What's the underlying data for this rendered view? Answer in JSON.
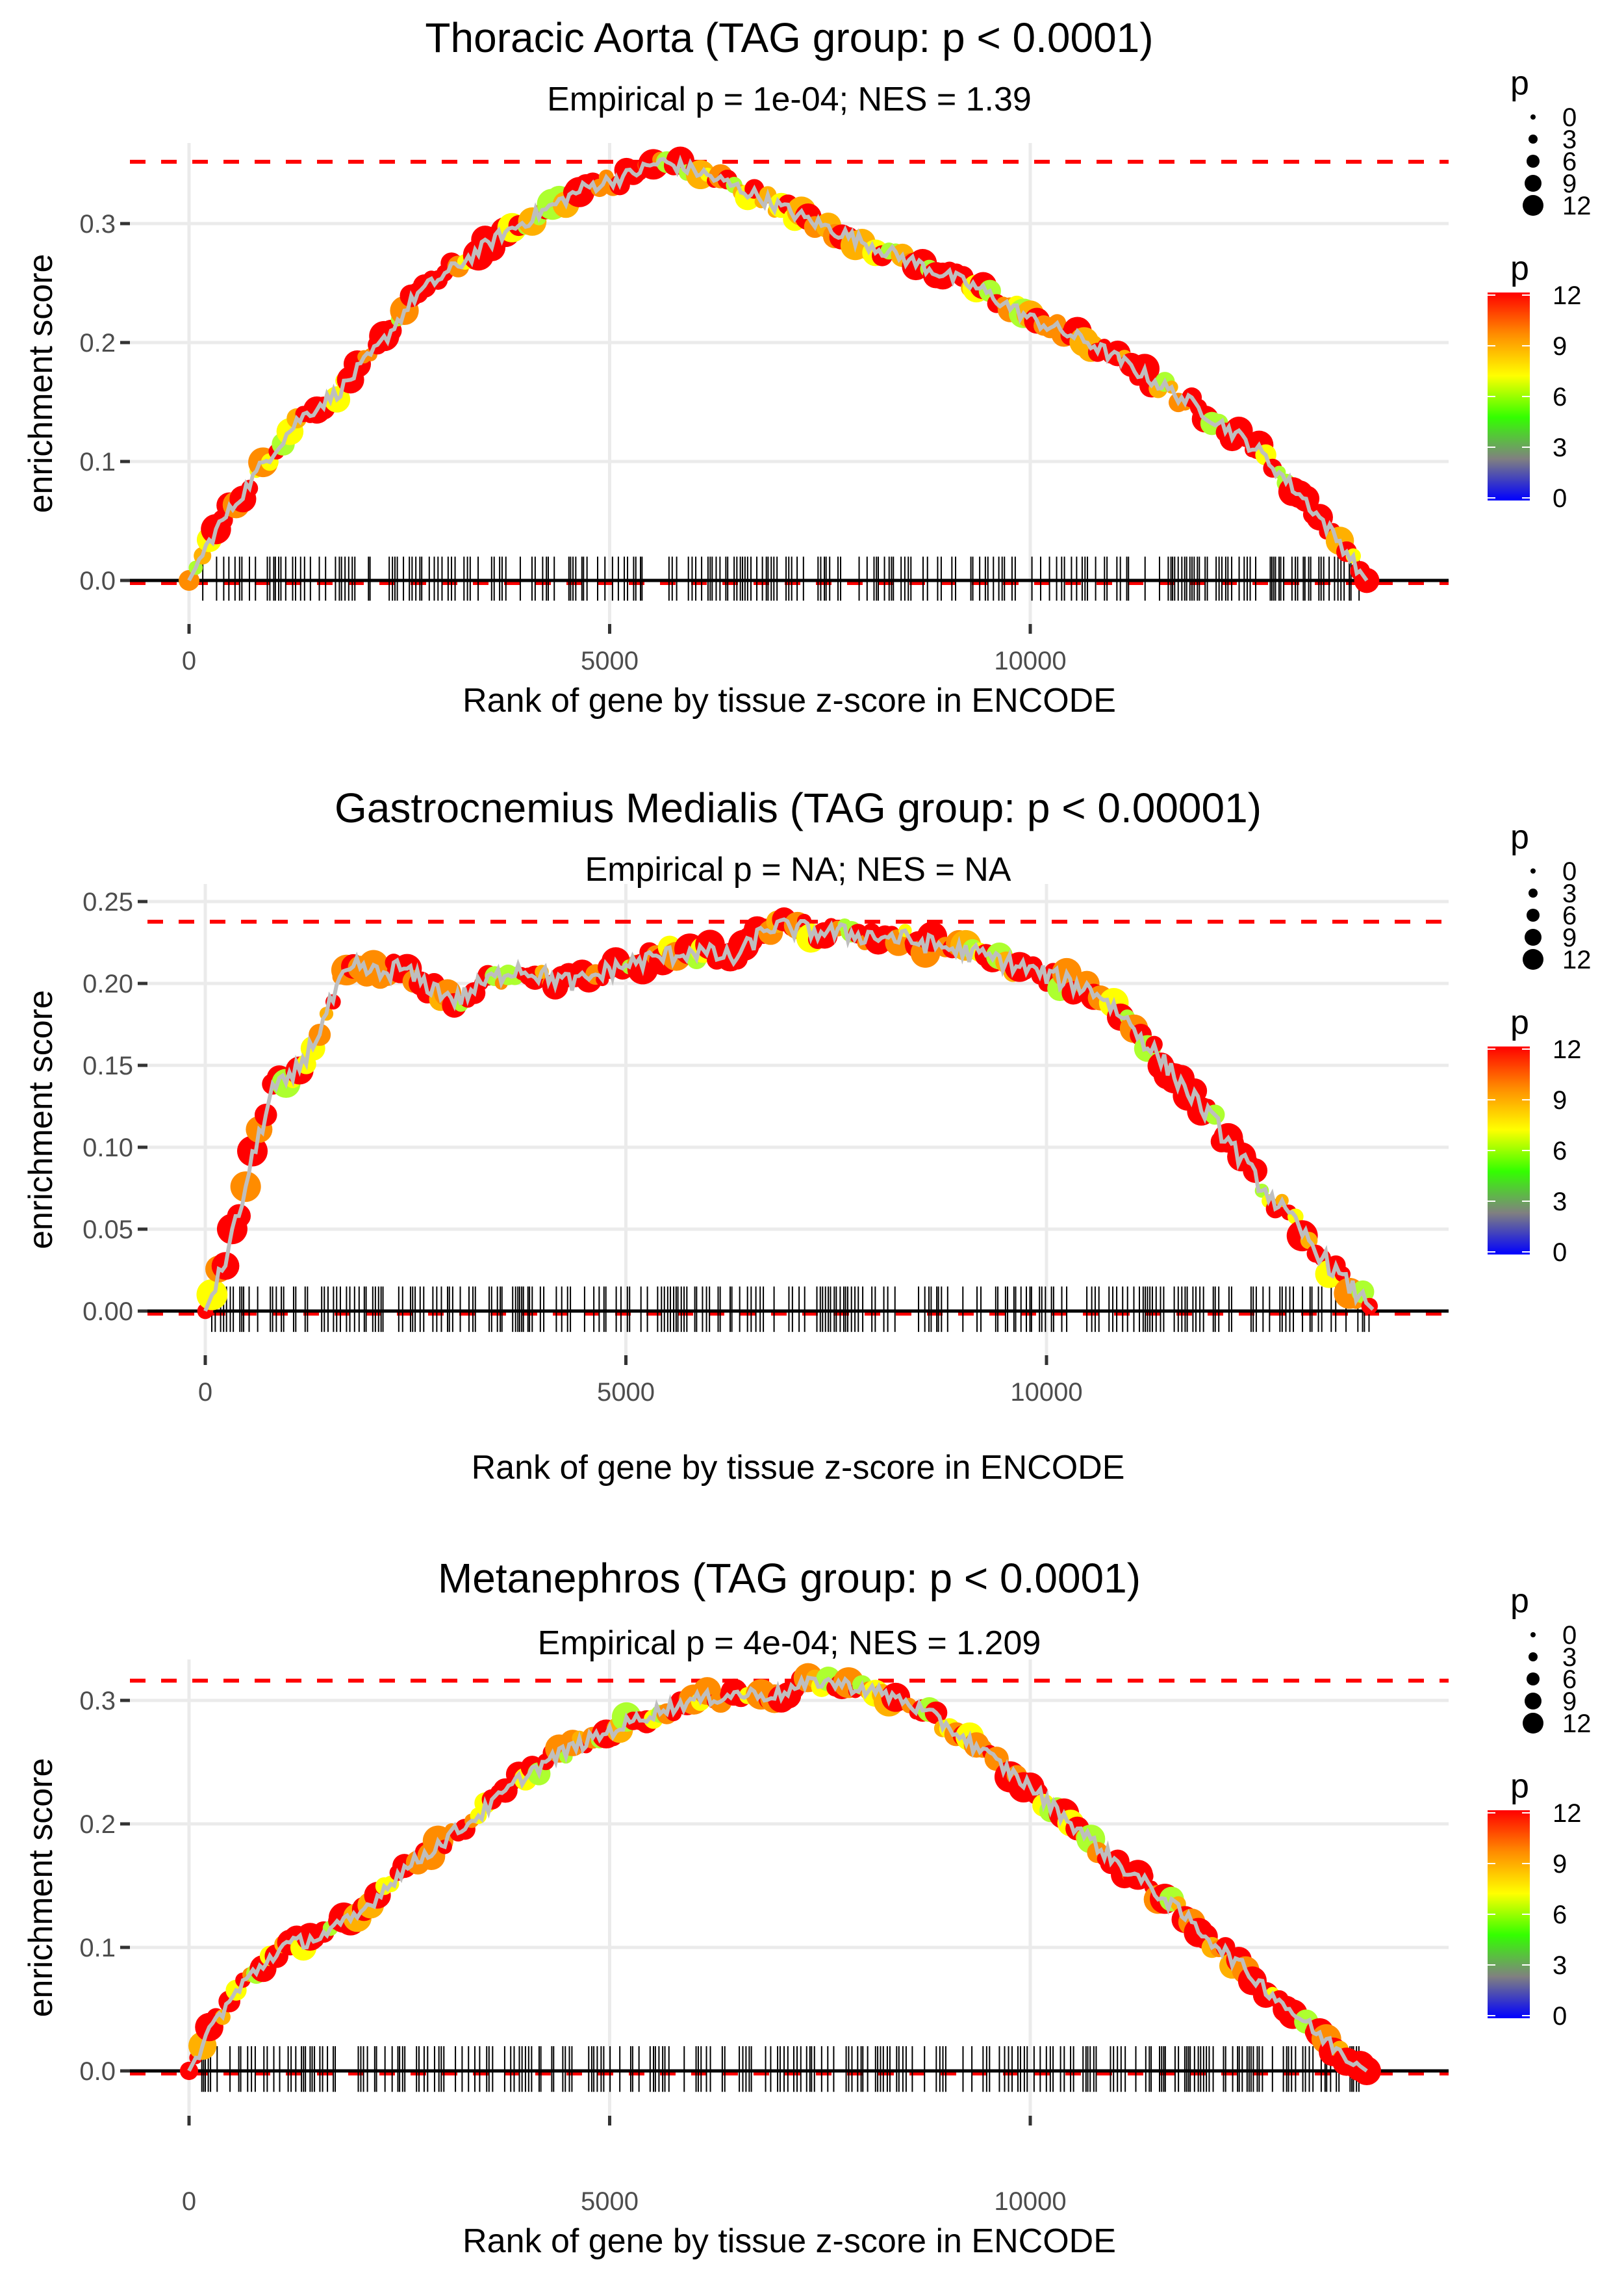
{
  "chart_data": [
    {
      "type": "line",
      "title": "Thoracic Aorta (TAG group: p < 0.0001)",
      "subtitle": "Empirical p = 1e-04; NES = 1.39",
      "xlabel": "Rank of gene by tissue z-score in ENCODE",
      "ylabel": "enrichment score",
      "xlim": [
        -700,
        14800
      ],
      "ylim": [
        -0.02,
        0.36
      ],
      "x_ticks": [
        0,
        5000,
        10000
      ],
      "x_tick_labels": [
        "0",
        "5000",
        "10000"
      ],
      "y_ticks": [
        0.0,
        0.1,
        0.2,
        0.3
      ],
      "y_tick_labels": [
        "0.0",
        "0.1",
        "0.2",
        "0.3"
      ],
      "max_es": 0.352,
      "min_es": 0.0,
      "rug_range": [
        50,
        13950
      ],
      "curve": [
        [
          0,
          0
        ],
        [
          300,
          0.04
        ],
        [
          600,
          0.07
        ],
        [
          900,
          0.1
        ],
        [
          1300,
          0.135
        ],
        [
          1800,
          0.16
        ],
        [
          2300,
          0.2
        ],
        [
          2700,
          0.24
        ],
        [
          3200,
          0.265
        ],
        [
          3700,
          0.29
        ],
        [
          4200,
          0.31
        ],
        [
          4700,
          0.33
        ],
        [
          5200,
          0.34
        ],
        [
          5600,
          0.352
        ],
        [
          6000,
          0.345
        ],
        [
          6700,
          0.325
        ],
        [
          7300,
          0.305
        ],
        [
          8000,
          0.285
        ],
        [
          8700,
          0.265
        ],
        [
          9400,
          0.245
        ],
        [
          10000,
          0.22
        ],
        [
          10700,
          0.2
        ],
        [
          11300,
          0.175
        ],
        [
          12000,
          0.145
        ],
        [
          12700,
          0.11
        ],
        [
          13300,
          0.065
        ],
        [
          13700,
          0.03
        ],
        [
          14000,
          0.0
        ]
      ]
    },
    {
      "type": "line",
      "title": "Gastrocnemius Medialis (TAG group: p < 0.00001)",
      "subtitle": "Empirical p = NA; NES = NA",
      "xlabel": "Rank of gene by tissue z-score in ENCODE",
      "ylabel": "enrichment score",
      "xlim": [
        -700,
        14800
      ],
      "ylim": [
        -0.005,
        0.25
      ],
      "x_ticks": [
        0,
        5000,
        10000
      ],
      "x_tick_labels": [
        "0",
        "5000",
        "10000"
      ],
      "y_ticks": [
        0.0,
        0.05,
        0.1,
        0.15,
        0.2,
        0.25
      ],
      "y_tick_labels": [
        "0.00",
        "0.05",
        "0.10",
        "0.15",
        "0.20",
        "0.25"
      ],
      "max_es": 0.2377,
      "min_es": 0.0,
      "rug_range": [
        50,
        13950
      ],
      "curve": [
        [
          0,
          0
        ],
        [
          200,
          0.025
        ],
        [
          400,
          0.06
        ],
        [
          600,
          0.1
        ],
        [
          800,
          0.135
        ],
        [
          1000,
          0.14
        ],
        [
          1300,
          0.165
        ],
        [
          1600,
          0.2
        ],
        [
          1800,
          0.21
        ],
        [
          2100,
          0.205
        ],
        [
          2300,
          0.21
        ],
        [
          2600,
          0.2
        ],
        [
          3000,
          0.19
        ],
        [
          3300,
          0.2
        ],
        [
          3700,
          0.21
        ],
        [
          4000,
          0.205
        ],
        [
          4400,
          0.2
        ],
        [
          4900,
          0.21
        ],
        [
          5300,
          0.215
        ],
        [
          5800,
          0.22
        ],
        [
          6300,
          0.215
        ],
        [
          6700,
          0.235
        ],
        [
          7200,
          0.232
        ],
        [
          7700,
          0.23
        ],
        [
          8200,
          0.228
        ],
        [
          8800,
          0.222
        ],
        [
          9400,
          0.215
        ],
        [
          10000,
          0.205
        ],
        [
          10600,
          0.195
        ],
        [
          11000,
          0.175
        ],
        [
          11500,
          0.145
        ],
        [
          12000,
          0.115
        ],
        [
          12500,
          0.08
        ],
        [
          13000,
          0.05
        ],
        [
          13500,
          0.02
        ],
        [
          13900,
          0.0
        ]
      ]
    },
    {
      "type": "line",
      "title": "Metanephros (TAG group: p < 0.0001)",
      "subtitle": "Empirical p = 4e-04; NES = 1.209",
      "xlabel": "Rank of gene by tissue z-score in ENCODE",
      "ylabel": "enrichment score",
      "xlim": [
        -700,
        14800
      ],
      "ylim": [
        -0.02,
        0.33
      ],
      "x_ticks": [
        0,
        5000,
        10000
      ],
      "x_tick_labels": [
        "0",
        "5000",
        "10000"
      ],
      "y_ticks": [
        0.0,
        0.1,
        0.2,
        0.3
      ],
      "y_tick_labels": [
        "0.0",
        "0.1",
        "0.2",
        "0.3"
      ],
      "max_es": 0.316,
      "min_es": 0.0,
      "rug_range": [
        50,
        13950
      ],
      "curve": [
        [
          0,
          0
        ],
        [
          300,
          0.04
        ],
        [
          700,
          0.075
        ],
        [
          1100,
          0.1
        ],
        [
          1600,
          0.11
        ],
        [
          2000,
          0.125
        ],
        [
          2500,
          0.16
        ],
        [
          3000,
          0.185
        ],
        [
          3500,
          0.21
        ],
        [
          4000,
          0.24
        ],
        [
          4500,
          0.26
        ],
        [
          5000,
          0.275
        ],
        [
          5500,
          0.29
        ],
        [
          6000,
          0.3
        ],
        [
          6500,
          0.305
        ],
        [
          7000,
          0.305
        ],
        [
          7500,
          0.316
        ],
        [
          8000,
          0.31
        ],
        [
          8500,
          0.3
        ],
        [
          9000,
          0.28
        ],
        [
          9500,
          0.255
        ],
        [
          10000,
          0.23
        ],
        [
          10500,
          0.2
        ],
        [
          11000,
          0.17
        ],
        [
          11500,
          0.145
        ],
        [
          12000,
          0.115
        ],
        [
          12500,
          0.085
        ],
        [
          13000,
          0.055
        ],
        [
          13500,
          0.025
        ],
        [
          14000,
          0.0
        ]
      ]
    }
  ],
  "legend": {
    "size_title": "p",
    "size_labels": [
      "0",
      "3",
      "6",
      "9",
      "12"
    ],
    "size_values": [
      0,
      3,
      6,
      9,
      12
    ],
    "color_title": "p",
    "color_labels": [
      "12",
      "9",
      "6",
      "3",
      "0"
    ],
    "color_values": [
      12,
      9,
      6,
      3,
      0
    ],
    "color_stops": [
      "#0000ff",
      "#808080",
      "#33ff00",
      "#ffff00",
      "#ff8c00",
      "#ff0000"
    ]
  },
  "colors": {
    "max_line": "#ff0000",
    "es_line": "#bebebe",
    "rug": "#000000",
    "grid": "#ebebeb",
    "point_palette": [
      "#ff0000",
      "#ff8c00",
      "#ffb000",
      "#ffff00",
      "#adff2f",
      "#7fff00"
    ]
  }
}
